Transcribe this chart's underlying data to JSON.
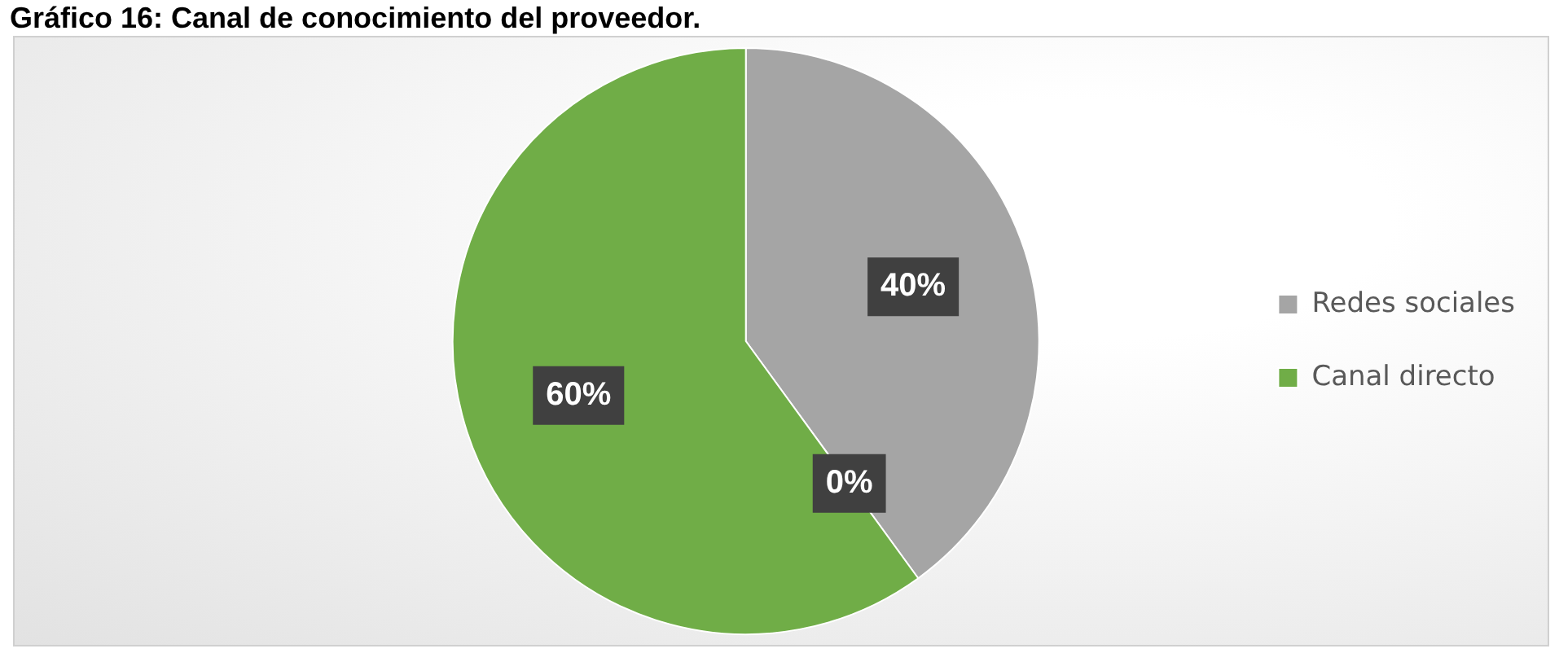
{
  "chart_data": {
    "type": "pie",
    "title": "Gráfico 16: Canal de conocimiento del proveedor.",
    "categories": [
      "Redes sociales",
      null,
      "Canal directo"
    ],
    "values": [
      40,
      0,
      60
    ],
    "colors": [
      "#a5a5a5",
      "#ed7d31",
      "#70ad47"
    ],
    "value_labels": [
      "40%",
      "0%",
      "60%"
    ],
    "legend": "right"
  }
}
